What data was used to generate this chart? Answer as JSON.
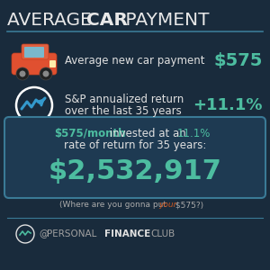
{
  "bg_color": "#192b3c",
  "title_regular": "AVERAGE ",
  "title_bold": "CAR",
  "title_end": " PAYMENT",
  "title_color": "#e8e8e8",
  "divider_color": "#3a7a96",
  "line1_label": "Average new car payment",
  "line1_value": "$575",
  "line2_label1": "S&P annualized return",
  "line2_label2": "over the last 35 years",
  "line2_value": "+11.1%",
  "value_color": "#4dbda0",
  "text_color": "#e0e0e0",
  "box_bg": "#1e3a52",
  "box_border": "#3a7a96",
  "box_line1a": "$575/month",
  "box_line1b": " invested at an ",
  "box_line1c": "11.1%",
  "box_line2": "rate of return for 35 years:",
  "box_main_value": "$2,532,917",
  "footnote": "(Where are you gonna put ",
  "footnote_your": "your",
  "footnote_end": " $575?)",
  "footnote_color": "#aaaaaa",
  "footnote_your_color": "#d05820",
  "footer_icon_color": "#4dbda0",
  "footer_at": "@",
  "footer_personal": "PERSONAL",
  "footer_finance": "FINANCE",
  "footer_club": "CLUB",
  "footer_light_color": "#a0a0a0",
  "footer_bold_color": "#e0e0e0"
}
